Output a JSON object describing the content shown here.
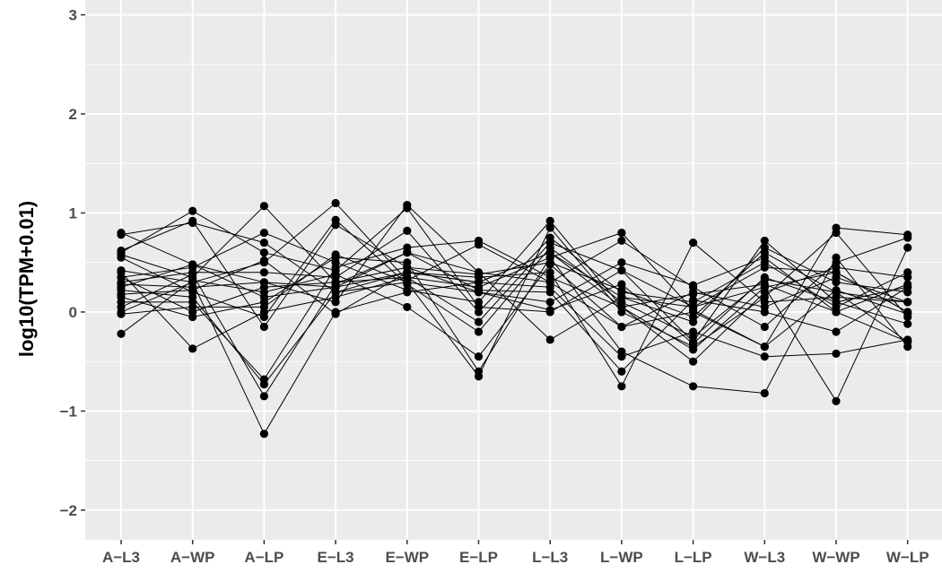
{
  "chart_data": {
    "type": "line",
    "title": "",
    "xlabel": "",
    "ylabel": "log10(TPM+0.01)",
    "categories": [
      "A−L3",
      "A−WP",
      "A−LP",
      "E−L3",
      "E−WP",
      "E−LP",
      "L−L3",
      "L−WP",
      "L−LP",
      "W−L3",
      "W−WP",
      "W−LP"
    ],
    "ylim": [
      -2.3,
      3.15
    ],
    "yticks": [
      -2,
      -1,
      0,
      1,
      2,
      3
    ],
    "ytick_labels": [
      "−2",
      "−1",
      "0",
      "1",
      "2",
      "3"
    ],
    "grid": true,
    "legend": "none",
    "colors": {
      "panel": "#ebebeb",
      "grid": "#ffffff",
      "line": "#000000",
      "point": "#000000"
    },
    "series": [
      {
        "values": [
          0.8,
          0.48,
          0.3,
          0.25,
          0.4,
          0.3,
          0.6,
          0.15,
          0.05,
          0.25,
          0.4,
          0.0
        ]
      },
      {
        "values": [
          0.78,
          0.9,
          0.7,
          0.2,
          0.3,
          0.2,
          0.1,
          0.5,
          0.27,
          0.55,
          0.0,
          -0.3
        ]
      },
      {
        "values": [
          0.62,
          0.92,
          -0.15,
          0.88,
          0.45,
          0.38,
          0.5,
          0.22,
          -0.05,
          0.6,
          0.2,
          0.1
        ]
      },
      {
        "values": [
          0.6,
          1.02,
          0.6,
          0.42,
          1.05,
          0.05,
          0.0,
          0.42,
          -0.3,
          0.72,
          0.1,
          0.25
        ]
      },
      {
        "values": [
          0.58,
          0.35,
          1.07,
          0.3,
          0.35,
          0.25,
          0.55,
          0.8,
          0.02,
          -0.35,
          0.85,
          0.78
        ]
      },
      {
        "values": [
          0.55,
          0.2,
          -0.05,
          0.93,
          0.28,
          -0.2,
          0.65,
          0.1,
          -0.25,
          0.33,
          0.2,
          -0.3
        ]
      },
      {
        "values": [
          0.42,
          0.3,
          0.5,
          1.1,
          0.32,
          0.68,
          0.3,
          0.72,
          0.25,
          -0.15,
          0.5,
          0.75
        ]
      },
      {
        "values": [
          0.35,
          0.45,
          0.8,
          0.5,
          0.22,
          0.1,
          0.92,
          0.05,
          -0.5,
          0.2,
          0.45,
          0.35
        ]
      },
      {
        "values": [
          0.3,
          0.4,
          0.4,
          0.35,
          0.82,
          0.0,
          0.75,
          0.2,
          0.1,
          0.5,
          0.05,
          0.4
        ]
      },
      {
        "values": [
          0.28,
          0.25,
          0.3,
          0.1,
          1.08,
          0.4,
          -0.28,
          0.15,
          -0.1,
          0.65,
          0.3,
          0.2
        ]
      },
      {
        "values": [
          0.22,
          0.15,
          -0.73,
          0.2,
          0.4,
          0.35,
          0.4,
          -0.75,
          0.7,
          0.1,
          0.15,
          0.1
        ]
      },
      {
        "values": [
          0.15,
          -0.05,
          0.1,
          0.55,
          0.5,
          -0.6,
          0.55,
          -0.4,
          -0.75,
          -0.82,
          0.55,
          -0.35
        ]
      },
      {
        "values": [
          0.1,
          0.1,
          -0.68,
          0.45,
          0.65,
          0.72,
          0.35,
          0.05,
          -0.38,
          0.25,
          -0.9,
          0.65
        ]
      },
      {
        "values": [
          0.05,
          0.38,
          -0.85,
          0.28,
          0.6,
          0.22,
          0.2,
          -0.6,
          0.12,
          0.0,
          -0.2,
          0.25
        ]
      },
      {
        "values": [
          0.0,
          0.3,
          -1.23,
          0.0,
          0.2,
          0.3,
          0.25,
          -0.45,
          -0.2,
          -0.45,
          -0.42,
          -0.28
        ]
      },
      {
        "values": [
          -0.02,
          0.05,
          0.05,
          0.58,
          0.3,
          -0.65,
          0.85,
          0.0,
          -0.35,
          0.15,
          0.8,
          -0.05
        ]
      },
      {
        "values": [
          -0.22,
          0.32,
          0.2,
          0.38,
          0.05,
          -0.45,
          0.48,
          -0.15,
          0.2,
          0.05,
          0.35,
          0.1
        ]
      },
      {
        "values": [
          0.4,
          -0.37,
          0.0,
          0.15,
          0.35,
          -0.1,
          0.7,
          0.42,
          0.05,
          0.45,
          0.4,
          0.0
        ]
      },
      {
        "values": [
          0.35,
          0.0,
          0.25,
          0.3,
          0.45,
          0.2,
          0.02,
          0.28,
          -0.32,
          0.35,
          0.1,
          -0.12
        ]
      },
      {
        "values": [
          0.25,
          0.48,
          0.15,
          0.25,
          0.6,
          0.4,
          0.3,
          -0.15,
          0.0,
          -0.35,
          0.22,
          -0.02
        ]
      },
      {
        "values": [
          0.18,
          0.22,
          0.52,
          -0.02,
          0.4,
          0.3,
          0.6,
          0.05,
          0.18,
          0.28,
          0.0,
          0.28
        ]
      }
    ]
  }
}
